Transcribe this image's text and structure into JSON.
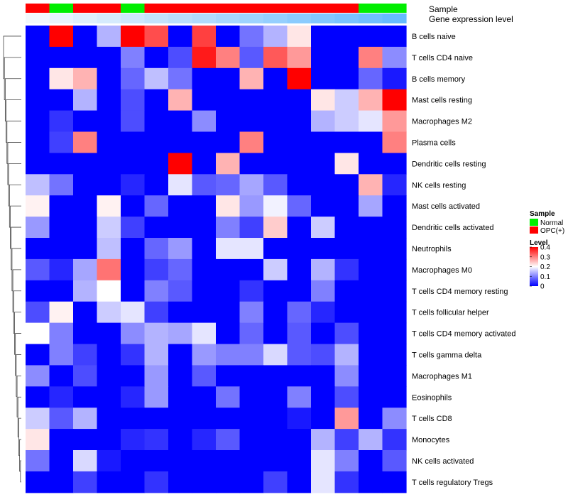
{
  "chart_data": {
    "type": "heatmap",
    "annotation_labels": {
      "sample": "Sample",
      "expression": "Gene expression level"
    },
    "rows": [
      "B cells naive",
      "T cells CD4 naive",
      "B cells memory",
      "Mast cells resting",
      "Macrophages M2",
      "Plasma cells",
      "Dendritic cells resting",
      "NK cells resting",
      "Mast cells activated",
      "Dendritic cells activated",
      "Neutrophils",
      "Macrophages M0",
      "T cells CD4 memory resting",
      "T cells follicular helper",
      "T cells CD4 memory activated",
      "T cells gamma delta",
      "Macrophages M1",
      "Eosinophils",
      "T cells CD8",
      "Monocytes",
      "NK cells activated",
      "T cells regulatory  Tregs"
    ],
    "column_sample": [
      "OPC(+)",
      "Normal",
      "OPC(+)",
      "OPC(+)",
      "Normal",
      "OPC(+)",
      "OPC(+)",
      "OPC(+)",
      "OPC(+)",
      "OPC(+)",
      "OPC(+)",
      "OPC(+)",
      "OPC(+)",
      "OPC(+)",
      "Normal",
      "Normal"
    ],
    "column_expression_level": [
      0.0,
      0.01,
      0.02,
      0.03,
      0.04,
      0.05,
      0.06,
      0.07,
      0.08,
      0.09,
      0.1,
      0.11,
      0.12,
      0.13,
      0.14,
      0.15
    ],
    "values": [
      [
        0.0,
        0.4,
        0.0,
        0.14,
        0.4,
        0.34,
        0.0,
        0.35,
        0.0,
        0.09,
        0.14,
        0.22,
        0.0,
        0.0,
        0.0,
        0.0
      ],
      [
        0.0,
        0.0,
        0.0,
        0.0,
        0.1,
        0.0,
        0.06,
        0.38,
        0.3,
        0.07,
        0.33,
        0.28,
        0.0,
        0.0,
        0.3,
        0.11
      ],
      [
        0.0,
        0.22,
        0.26,
        0.0,
        0.08,
        0.15,
        0.09,
        0.0,
        0.0,
        0.26,
        0.0,
        0.4,
        0.0,
        0.0,
        0.08,
        0.02
      ],
      [
        0.0,
        0.0,
        0.14,
        0.0,
        0.06,
        0.0,
        0.26,
        0.0,
        0.0,
        0.0,
        0.0,
        0.0,
        0.22,
        0.16,
        0.26,
        0.4
      ],
      [
        0.0,
        0.04,
        0.0,
        0.0,
        0.06,
        0.0,
        0.0,
        0.11,
        0.0,
        0.0,
        0.0,
        0.0,
        0.14,
        0.16,
        0.18,
        0.28
      ],
      [
        0.0,
        0.05,
        0.3,
        0.0,
        0.0,
        0.0,
        0.0,
        0.0,
        0.0,
        0.3,
        0.0,
        0.0,
        0.0,
        0.0,
        0.0,
        0.3
      ],
      [
        0.0,
        0.0,
        0.0,
        0.0,
        0.0,
        0.0,
        0.4,
        0.0,
        0.26,
        0.0,
        0.0,
        0.0,
        0.0,
        0.22,
        0.0,
        0.0
      ],
      [
        0.15,
        0.09,
        0.0,
        0.0,
        0.03,
        0.0,
        0.18,
        0.07,
        0.08,
        0.13,
        0.07,
        0.0,
        0.0,
        0.0,
        0.26,
        0.03
      ],
      [
        0.21,
        0.0,
        0.0,
        0.21,
        0.0,
        0.08,
        0.0,
        0.0,
        0.22,
        0.12,
        0.19,
        0.08,
        0.0,
        0.0,
        0.13,
        0.0
      ],
      [
        0.12,
        0.0,
        0.0,
        0.16,
        0.05,
        0.0,
        0.0,
        0.0,
        0.1,
        0.05,
        0.24,
        0.0,
        0.16,
        0.0,
        0.0,
        0.0
      ],
      [
        0.0,
        0.0,
        0.0,
        0.15,
        0.0,
        0.08,
        0.12,
        0.0,
        0.18,
        0.18,
        0.0,
        0.0,
        0.0,
        0.0,
        0.0,
        0.0
      ],
      [
        0.07,
        0.03,
        0.13,
        0.31,
        0.0,
        0.05,
        0.08,
        0.0,
        0.0,
        0.0,
        0.16,
        0.0,
        0.14,
        0.04,
        0.0,
        0.0
      ],
      [
        0.0,
        0.0,
        0.14,
        0.2,
        0.0,
        0.1,
        0.07,
        0.0,
        0.0,
        0.04,
        0.0,
        0.0,
        0.1,
        0.0,
        0.0,
        0.0
      ],
      [
        0.06,
        0.21,
        0.0,
        0.16,
        0.18,
        0.05,
        0.0,
        0.0,
        0.0,
        0.1,
        0.0,
        0.08,
        0.03,
        0.0,
        0.0,
        0.0
      ],
      [
        0.2,
        0.1,
        0.0,
        0.0,
        0.11,
        0.14,
        0.13,
        0.18,
        0.0,
        0.08,
        0.0,
        0.07,
        0.0,
        0.06,
        0.0,
        0.0
      ],
      [
        0.0,
        0.1,
        0.05,
        0.0,
        0.04,
        0.14,
        0.0,
        0.12,
        0.1,
        0.1,
        0.17,
        0.07,
        0.06,
        0.14,
        0.0,
        0.0
      ],
      [
        0.11,
        0.0,
        0.06,
        0.0,
        0.0,
        0.12,
        0.0,
        0.07,
        0.0,
        0.0,
        0.0,
        0.0,
        0.0,
        0.11,
        0.0,
        0.0
      ],
      [
        0.0,
        0.03,
        0.0,
        0.0,
        0.03,
        0.12,
        0.0,
        0.0,
        0.09,
        0.0,
        0.0,
        0.1,
        0.0,
        0.06,
        0.0,
        0.0
      ],
      [
        0.16,
        0.07,
        0.14,
        0.0,
        0.0,
        0.0,
        0.0,
        0.0,
        0.0,
        0.0,
        0.0,
        0.02,
        0.0,
        0.28,
        0.0,
        0.11
      ],
      [
        0.22,
        0.0,
        0.0,
        0.0,
        0.03,
        0.04,
        0.0,
        0.03,
        0.07,
        0.0,
        0.0,
        0.0,
        0.14,
        0.05,
        0.14,
        0.04
      ],
      [
        0.09,
        0.0,
        0.17,
        0.02,
        0.0,
        0.0,
        0.0,
        0.0,
        0.0,
        0.0,
        0.0,
        0.0,
        0.18,
        0.1,
        0.0,
        0.07
      ],
      [
        0.0,
        0.0,
        0.05,
        0.0,
        0.0,
        0.04,
        0.0,
        0.0,
        0.0,
        0.0,
        0.05,
        0.0,
        0.18,
        0.04,
        0.0,
        0.0
      ]
    ],
    "legend_sample": {
      "title": "Sample",
      "entries": [
        {
          "name": "Normal",
          "color": "#00ee00"
        },
        {
          "name": "OPC(+)",
          "color": "#ff0000"
        }
      ]
    },
    "legend_level": {
      "title": "Level",
      "ticks": [
        "0.4",
        "0.3",
        "0.2",
        "0.1",
        "0"
      ],
      "tick_values": [
        0.4,
        0.3,
        0.2,
        0.1,
        0.0
      ],
      "range": [
        0,
        0.4
      ]
    },
    "colors": {
      "low": "#0000ff",
      "mid": "#ffffff",
      "high": "#ff0000",
      "expr_low": "#f2f7fc",
      "expr_high": "#66bbff"
    }
  }
}
